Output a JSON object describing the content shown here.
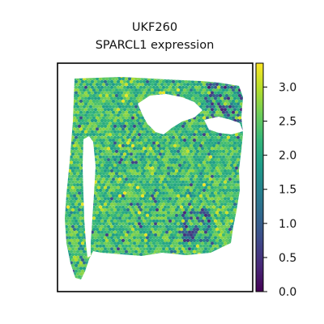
{
  "chart_data": {
    "type": "heatmap",
    "subtype": "spatial-spot-map",
    "title": "UKF260",
    "subtitle": "SPARCL1 expression",
    "xlabel": "",
    "ylabel": "",
    "color_scale": {
      "colormap": "viridis",
      "min": 0.0,
      "max": 3.35,
      "ticks": [
        0.0,
        0.5,
        1.0,
        1.5,
        2.0,
        2.5,
        3.0
      ],
      "tick_labels": [
        "0.0",
        "0.5",
        "1.0",
        "1.5",
        "2.0",
        "2.5",
        "3.0"
      ],
      "stops": [
        "#440154",
        "#482878",
        "#3e4989",
        "#31688e",
        "#26828e",
        "#1f9e89",
        "#35b779",
        "#6ece58",
        "#b5de2b",
        "#fde725"
      ]
    },
    "grid": false,
    "legend": "colorbar-right",
    "typical_value_range": [
      1.8,
      2.8
    ],
    "low_expression_regions": [
      "upper-right border",
      "lower-middle-right"
    ]
  }
}
